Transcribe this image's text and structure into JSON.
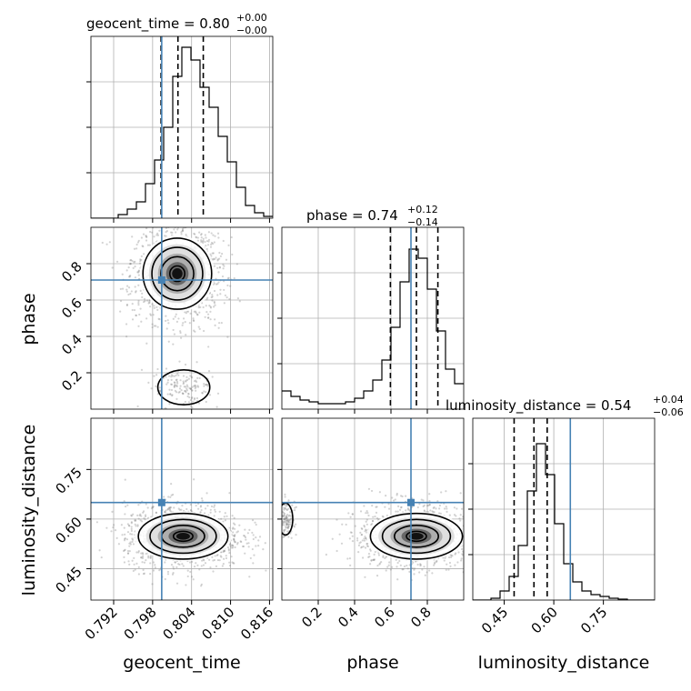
{
  "chart_data": {
    "type": "corner",
    "parameters": [
      "geocent_time",
      "phase",
      "luminosity_distance"
    ],
    "axis_labels": [
      "geocent_time",
      "phase",
      "luminosity_distance"
    ],
    "ranges": {
      "geocent_time": [
        0.7885,
        0.8165
      ],
      "phase": [
        0.0,
        1.0
      ],
      "luminosity_distance": [
        0.355,
        0.905
      ]
    },
    "ticks": {
      "geocent_time": [
        0.792,
        0.798,
        0.804,
        0.81,
        0.816
      ],
      "phase": [
        0.2,
        0.4,
        0.6,
        0.8
      ],
      "luminosity_distance": [
        0.45,
        0.6,
        0.75
      ]
    },
    "tick_labels": {
      "geocent_time": [
        "0.792",
        "0.798",
        "0.804",
        "0.810",
        "0.816"
      ],
      "phase": [
        "0.2",
        "0.4",
        "0.6",
        "0.8"
      ],
      "luminosity_distance": [
        "0.45",
        "0.60",
        "0.75"
      ]
    },
    "titles": [
      {
        "param": "geocent_time",
        "main": "geocent_time = 0.80",
        "sup": "+0.00",
        "sub": "−0.00"
      },
      {
        "param": "phase",
        "main": "phase = 0.74",
        "sup": "+0.12",
        "sub": "−0.14"
      },
      {
        "param": "luminosity_distance",
        "main": "luminosity_distance = 0.54",
        "sup": "+0.04",
        "sub": "−0.06"
      }
    ],
    "truths": {
      "geocent_time": 0.7994,
      "phase": 0.71,
      "luminosity_distance": 0.65
    },
    "quantiles": {
      "geocent_time": [
        0.7993,
        0.8019,
        0.8058
      ],
      "phase": [
        0.597,
        0.74,
        0.858
      ],
      "luminosity_distance": [
        0.48,
        0.54,
        0.58
      ]
    },
    "histograms": {
      "geocent_time": {
        "x_start": 0.7885,
        "bin_width": 0.0014,
        "counts": [
          0,
          0,
          0,
          0.02,
          0.05,
          0.09,
          0.19,
          0.32,
          0.5,
          0.78,
          0.94,
          0.87,
          0.72,
          0.61,
          0.45,
          0.31,
          0.17,
          0.07,
          0.03,
          0.01
        ]
      },
      "phase": {
        "x_start": 0.0,
        "bin_width": 0.05,
        "counts": [
          0.1,
          0.07,
          0.05,
          0.04,
          0.03,
          0.03,
          0.03,
          0.04,
          0.06,
          0.1,
          0.16,
          0.27,
          0.45,
          0.7,
          0.88,
          0.83,
          0.66,
          0.43,
          0.22,
          0.14
        ]
      },
      "luminosity_distance": {
        "x_start": 0.355,
        "bin_width": 0.0275,
        "counts": [
          0,
          0,
          0.01,
          0.05,
          0.13,
          0.3,
          0.6,
          0.86,
          0.69,
          0.42,
          0.2,
          0.1,
          0.05,
          0.03,
          0.02,
          0.01,
          0.005,
          0,
          0,
          0
        ]
      }
    },
    "density_2d": [
      {
        "x": "geocent_time",
        "y": "phase",
        "mode": [
          0.8018,
          0.745
        ],
        "sigma": [
          0.0023,
          0.085
        ],
        "secondary_mode": [
          0.8028,
          0.12
        ],
        "secondary_sigma": [
          0.0025,
          0.06
        ]
      },
      {
        "x": "geocent_time",
        "y": "luminosity_distance",
        "mode": [
          0.8027,
          0.548
        ],
        "sigma": [
          0.003,
          0.03
        ]
      },
      {
        "x": "phase",
        "y": "luminosity_distance",
        "mode": [
          0.74,
          0.548
        ],
        "sigma": [
          0.11,
          0.03
        ],
        "secondary_mode": [
          0.02,
          0.6
        ],
        "secondary_sigma": [
          0.025,
          0.03
        ]
      }
    ],
    "colors": {
      "truth": "#4682b4",
      "line": "#000000",
      "grid": "#b0b0b0",
      "points": "#808080"
    },
    "grid": true
  }
}
